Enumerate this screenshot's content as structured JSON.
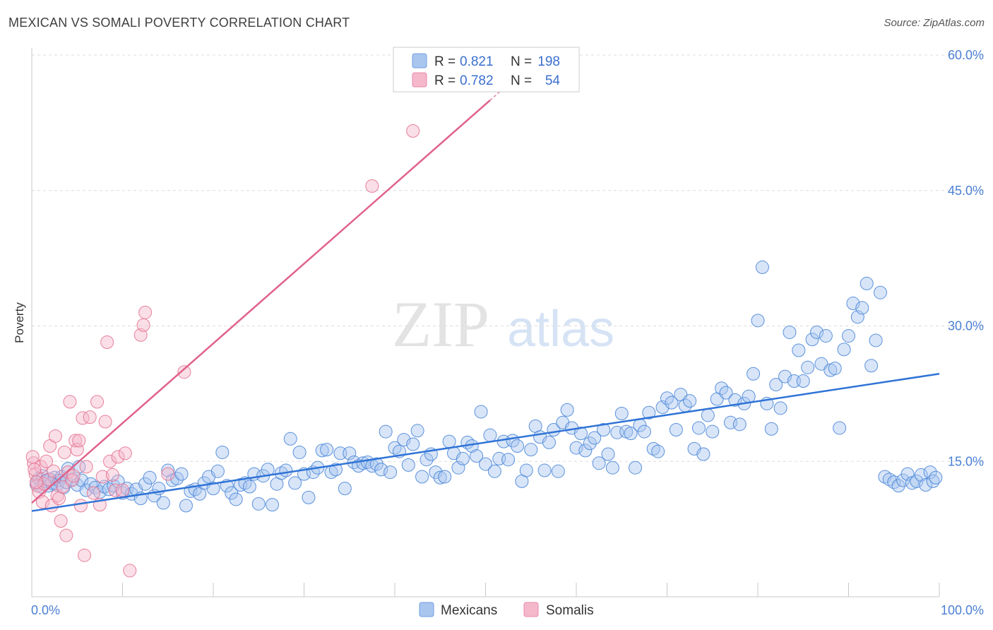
{
  "header": {
    "title": "MEXICAN VS SOMALI POVERTY CORRELATION CHART",
    "source": "Source: ZipAtlas.com"
  },
  "watermark": {
    "zip": "ZIP",
    "atlas": "atlas"
  },
  "legend": {
    "rows": [
      {
        "r_label": "R =",
        "r_value": "0.821",
        "n_label": "N =",
        "n_value": "198",
        "color": "#a9c6ef"
      },
      {
        "r_label": "R =",
        "r_value": "0.782",
        "n_label": "N =",
        "n_value": "54",
        "color": "#f5b8cb"
      }
    ]
  },
  "bottom_legend": [
    {
      "label": "Mexicans",
      "color": "#a9c6ef"
    },
    {
      "label": "Somalis",
      "color": "#f5b8cb"
    }
  ],
  "chart_data": {
    "type": "scatter",
    "title": "MEXICAN VS SOMALI POVERTY CORRELATION CHART",
    "xlabel": "",
    "ylabel": "Poverty",
    "xlim": [
      0,
      100
    ],
    "ylim": [
      0,
      60
    ],
    "x_tick_labels": [
      "0.0%",
      "100.0%"
    ],
    "y_tick_labels": [
      "15.0%",
      "30.0%",
      "45.0%",
      "60.0%"
    ],
    "y_ticks": [
      15,
      30,
      45,
      60
    ],
    "grid": "horizontal dashed",
    "legend_position": "top-center",
    "colors": {
      "mexicans": "#4a86d8",
      "somalis": "#e5728f",
      "mexicans_fill": "#a9c6ef",
      "somalis_fill": "#f5b8cb"
    },
    "series": [
      {
        "name": "Mexicans",
        "trend": {
          "x": [
            0,
            100
          ],
          "y": [
            9.5,
            24.7
          ]
        },
        "points": [
          [
            0.5,
            12.5
          ],
          [
            0.8,
            13.1
          ],
          [
            1.0,
            12.2
          ],
          [
            1.2,
            13.4
          ],
          [
            1.5,
            12.8
          ],
          [
            1.8,
            12.3
          ],
          [
            2.0,
            13.0
          ],
          [
            2.2,
            12.6
          ],
          [
            2.5,
            13.2
          ],
          [
            2.8,
            12.4
          ],
          [
            3.0,
            12.9
          ],
          [
            3.3,
            13.3
          ],
          [
            3.5,
            12.1
          ],
          [
            3.8,
            12.7
          ],
          [
            4.0,
            14.2
          ],
          [
            4.5,
            13.0
          ],
          [
            5.0,
            12.4
          ],
          [
            5.2,
            14.4
          ],
          [
            5.5,
            12.9
          ],
          [
            6.0,
            11.8
          ],
          [
            6.5,
            12.5
          ],
          [
            7.0,
            12.1
          ],
          [
            7.5,
            11.6
          ],
          [
            8.0,
            12.2
          ],
          [
            8.5,
            11.9
          ],
          [
            9.0,
            12.3
          ],
          [
            9.5,
            12.8
          ],
          [
            10.0,
            11.5
          ],
          [
            10.5,
            12.0
          ],
          [
            11.0,
            11.4
          ],
          [
            11.5,
            11.9
          ],
          [
            12.0,
            10.9
          ],
          [
            12.5,
            12.5
          ],
          [
            13.0,
            13.2
          ],
          [
            13.5,
            11.2
          ],
          [
            14.0,
            12.0
          ],
          [
            14.5,
            10.4
          ],
          [
            15.0,
            14.0
          ],
          [
            15.5,
            12.9
          ],
          [
            16.0,
            13.1
          ],
          [
            16.5,
            13.6
          ],
          [
            17.0,
            10.1
          ],
          [
            17.5,
            11.7
          ],
          [
            18.0,
            11.9
          ],
          [
            18.5,
            11.4
          ],
          [
            19.0,
            12.6
          ],
          [
            19.5,
            13.3
          ],
          [
            20.0,
            12.0
          ],
          [
            20.5,
            13.9
          ],
          [
            21.0,
            16.0
          ],
          [
            21.5,
            12.3
          ],
          [
            22.0,
            11.5
          ],
          [
            22.5,
            10.8
          ],
          [
            23.0,
            12.4
          ],
          [
            23.5,
            12.6
          ],
          [
            24.0,
            12.2
          ],
          [
            24.5,
            13.6
          ],
          [
            25.0,
            10.3
          ],
          [
            25.5,
            13.4
          ],
          [
            26.0,
            14.1
          ],
          [
            26.5,
            10.2
          ],
          [
            27.0,
            12.5
          ],
          [
            27.5,
            13.7
          ],
          [
            28.0,
            14.0
          ],
          [
            28.5,
            17.5
          ],
          [
            29.0,
            12.6
          ],
          [
            29.5,
            16.0
          ],
          [
            30.0,
            13.6
          ],
          [
            30.5,
            11.0
          ],
          [
            31.0,
            13.8
          ],
          [
            31.5,
            14.3
          ],
          [
            32.0,
            16.2
          ],
          [
            32.5,
            16.3
          ],
          [
            33.0,
            13.8
          ],
          [
            33.5,
            14.1
          ],
          [
            34.0,
            15.9
          ],
          [
            34.5,
            12.0
          ],
          [
            35.0,
            15.9
          ],
          [
            35.5,
            14.9
          ],
          [
            36.0,
            14.5
          ],
          [
            36.5,
            14.8
          ],
          [
            37.0,
            14.9
          ],
          [
            37.5,
            14.5
          ],
          [
            38.0,
            14.7
          ],
          [
            38.5,
            14.1
          ],
          [
            39.0,
            18.3
          ],
          [
            39.5,
            13.8
          ],
          [
            40.0,
            16.5
          ],
          [
            40.5,
            16.1
          ],
          [
            41.0,
            17.4
          ],
          [
            41.5,
            14.6
          ],
          [
            42.0,
            16.9
          ],
          [
            42.5,
            18.4
          ],
          [
            43.0,
            13.3
          ],
          [
            43.5,
            15.2
          ],
          [
            44.0,
            15.8
          ],
          [
            44.5,
            13.8
          ],
          [
            45.0,
            13.2
          ],
          [
            45.5,
            13.3
          ],
          [
            46.0,
            17.2
          ],
          [
            46.5,
            15.9
          ],
          [
            47.0,
            14.3
          ],
          [
            47.5,
            15.3
          ],
          [
            48.0,
            17.1
          ],
          [
            48.5,
            16.7
          ],
          [
            49.0,
            15.6
          ],
          [
            49.5,
            20.5
          ],
          [
            50.0,
            14.7
          ],
          [
            50.5,
            17.9
          ],
          [
            51.0,
            13.9
          ],
          [
            51.5,
            15.3
          ],
          [
            52.0,
            17.2
          ],
          [
            52.5,
            15.2
          ],
          [
            53.0,
            17.3
          ],
          [
            53.5,
            16.7
          ],
          [
            54.0,
            12.8
          ],
          [
            54.5,
            14.0
          ],
          [
            55.0,
            16.3
          ],
          [
            55.5,
            18.9
          ],
          [
            56.0,
            17.7
          ],
          [
            56.5,
            14.0
          ],
          [
            57.0,
            17.1
          ],
          [
            57.5,
            18.5
          ],
          [
            58.0,
            13.9
          ],
          [
            58.5,
            19.3
          ],
          [
            59.0,
            20.7
          ],
          [
            59.5,
            18.7
          ],
          [
            60.0,
            16.5
          ],
          [
            60.5,
            18.1
          ],
          [
            61.0,
            16.2
          ],
          [
            61.5,
            17.0
          ],
          [
            62.0,
            17.6
          ],
          [
            62.5,
            14.8
          ],
          [
            63.0,
            18.5
          ],
          [
            63.5,
            15.8
          ],
          [
            64.0,
            14.3
          ],
          [
            64.5,
            18.2
          ],
          [
            65.0,
            20.3
          ],
          [
            65.5,
            18.3
          ],
          [
            66.0,
            18.1
          ],
          [
            66.5,
            14.3
          ],
          [
            67.0,
            19.0
          ],
          [
            67.5,
            18.3
          ],
          [
            68.0,
            20.4
          ],
          [
            68.5,
            16.4
          ],
          [
            69.0,
            16.1
          ],
          [
            69.5,
            21.0
          ],
          [
            70.0,
            22.0
          ],
          [
            70.5,
            21.5
          ],
          [
            71.0,
            18.5
          ],
          [
            71.5,
            22.4
          ],
          [
            72.0,
            21.2
          ],
          [
            72.5,
            21.7
          ],
          [
            73.0,
            16.4
          ],
          [
            73.5,
            18.7
          ],
          [
            74.0,
            15.8
          ],
          [
            74.5,
            20.1
          ],
          [
            75.0,
            18.3
          ],
          [
            75.5,
            21.9
          ],
          [
            76.0,
            23.1
          ],
          [
            76.5,
            22.6
          ],
          [
            77.0,
            19.3
          ],
          [
            77.5,
            21.8
          ],
          [
            78.0,
            19.1
          ],
          [
            78.5,
            21.4
          ],
          [
            79.0,
            22.2
          ],
          [
            79.5,
            24.7
          ],
          [
            80.0,
            30.6
          ],
          [
            80.5,
            36.5
          ],
          [
            81.0,
            21.4
          ],
          [
            81.5,
            18.6
          ],
          [
            82.0,
            23.5
          ],
          [
            82.5,
            20.9
          ],
          [
            83.0,
            24.4
          ],
          [
            83.5,
            29.3
          ],
          [
            84.0,
            23.9
          ],
          [
            84.5,
            27.3
          ],
          [
            85.0,
            23.9
          ],
          [
            85.5,
            25.4
          ],
          [
            86.0,
            28.5
          ],
          [
            86.5,
            29.3
          ],
          [
            87.0,
            25.8
          ],
          [
            87.5,
            28.9
          ],
          [
            88.0,
            25.1
          ],
          [
            88.5,
            25.3
          ],
          [
            89.0,
            18.7
          ],
          [
            89.5,
            27.4
          ],
          [
            90.0,
            28.9
          ],
          [
            90.5,
            32.5
          ],
          [
            91.0,
            31.0
          ],
          [
            91.5,
            32.0
          ],
          [
            92.0,
            34.7
          ],
          [
            92.5,
            25.6
          ],
          [
            93.0,
            28.4
          ],
          [
            93.5,
            33.7
          ],
          [
            94.0,
            13.3
          ],
          [
            94.5,
            13.0
          ],
          [
            95.0,
            12.7
          ],
          [
            95.5,
            12.3
          ],
          [
            96.0,
            12.9
          ],
          [
            96.5,
            13.6
          ],
          [
            97.0,
            12.6
          ],
          [
            97.5,
            12.8
          ],
          [
            98.0,
            13.5
          ],
          [
            98.5,
            12.4
          ],
          [
            99.0,
            13.8
          ],
          [
            99.3,
            12.8
          ],
          [
            99.6,
            13.2
          ]
        ]
      },
      {
        "name": "Somalis",
        "trend": {
          "x": [
            0,
            50.5
          ],
          "y": [
            10.4,
            55.0
          ]
        },
        "points": [
          [
            0.2,
            14.8
          ],
          [
            0.4,
            13.6
          ],
          [
            0.6,
            12.3
          ],
          [
            0.8,
            11.6
          ],
          [
            1.0,
            14.4
          ],
          [
            1.2,
            10.5
          ],
          [
            1.4,
            12.5
          ],
          [
            1.6,
            15.0
          ],
          [
            1.8,
            13.0
          ],
          [
            2.0,
            16.7
          ],
          [
            2.2,
            10.1
          ],
          [
            2.4,
            13.9
          ],
          [
            2.6,
            17.8
          ],
          [
            2.8,
            11.2
          ],
          [
            3.0,
            10.9
          ],
          [
            3.2,
            8.4
          ],
          [
            3.4,
            12.2
          ],
          [
            3.6,
            16.0
          ],
          [
            3.8,
            6.8
          ],
          [
            4.0,
            13.8
          ],
          [
            4.2,
            21.6
          ],
          [
            4.4,
            12.9
          ],
          [
            4.6,
            13.4
          ],
          [
            4.8,
            17.3
          ],
          [
            5.0,
            16.3
          ],
          [
            5.2,
            17.3
          ],
          [
            5.4,
            10.1
          ],
          [
            5.6,
            19.8
          ],
          [
            5.8,
            4.6
          ],
          [
            6.0,
            14.4
          ],
          [
            6.4,
            19.9
          ],
          [
            6.8,
            11.5
          ],
          [
            7.2,
            21.6
          ],
          [
            7.5,
            10.2
          ],
          [
            7.8,
            13.3
          ],
          [
            8.1,
            19.4
          ],
          [
            8.3,
            28.2
          ],
          [
            8.6,
            15.0
          ],
          [
            8.9,
            13.5
          ],
          [
            9.2,
            11.8
          ],
          [
            9.5,
            15.5
          ],
          [
            10.0,
            11.8
          ],
          [
            10.3,
            15.9
          ],
          [
            10.8,
            2.9
          ],
          [
            12.0,
            29.0
          ],
          [
            12.3,
            30.1
          ],
          [
            12.5,
            31.5
          ],
          [
            15.0,
            13.6
          ],
          [
            16.8,
            24.9
          ],
          [
            37.5,
            45.5
          ],
          [
            42.0,
            51.6
          ],
          [
            0.1,
            15.5
          ],
          [
            0.3,
            14.1
          ],
          [
            0.5,
            12.7
          ]
        ]
      }
    ]
  }
}
